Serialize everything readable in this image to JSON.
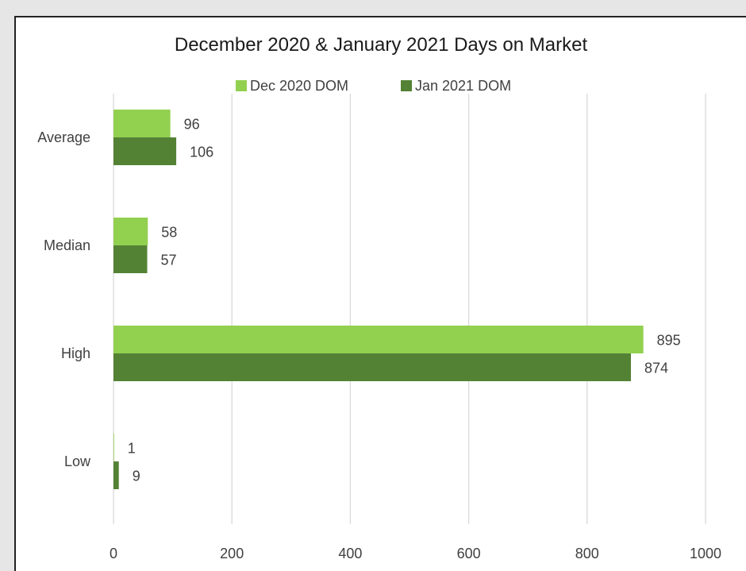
{
  "chart_data": {
    "type": "bar",
    "orientation": "horizontal",
    "title": "December 2020 & January 2021 Days on Market",
    "categories": [
      "Average",
      "Median",
      "High",
      "Low"
    ],
    "series": [
      {
        "name": "Dec 2020 DOM",
        "values": [
          96,
          58,
          895,
          1
        ],
        "color": "#92d050"
      },
      {
        "name": "Jan 2021 DOM",
        "values": [
          106,
          57,
          874,
          9
        ],
        "color": "#548235"
      }
    ],
    "xlim": [
      0,
      1000
    ],
    "xticks": [
      "0",
      "200",
      "400",
      "600",
      "800",
      "1000"
    ],
    "legend_position": "top",
    "grid": true
  }
}
